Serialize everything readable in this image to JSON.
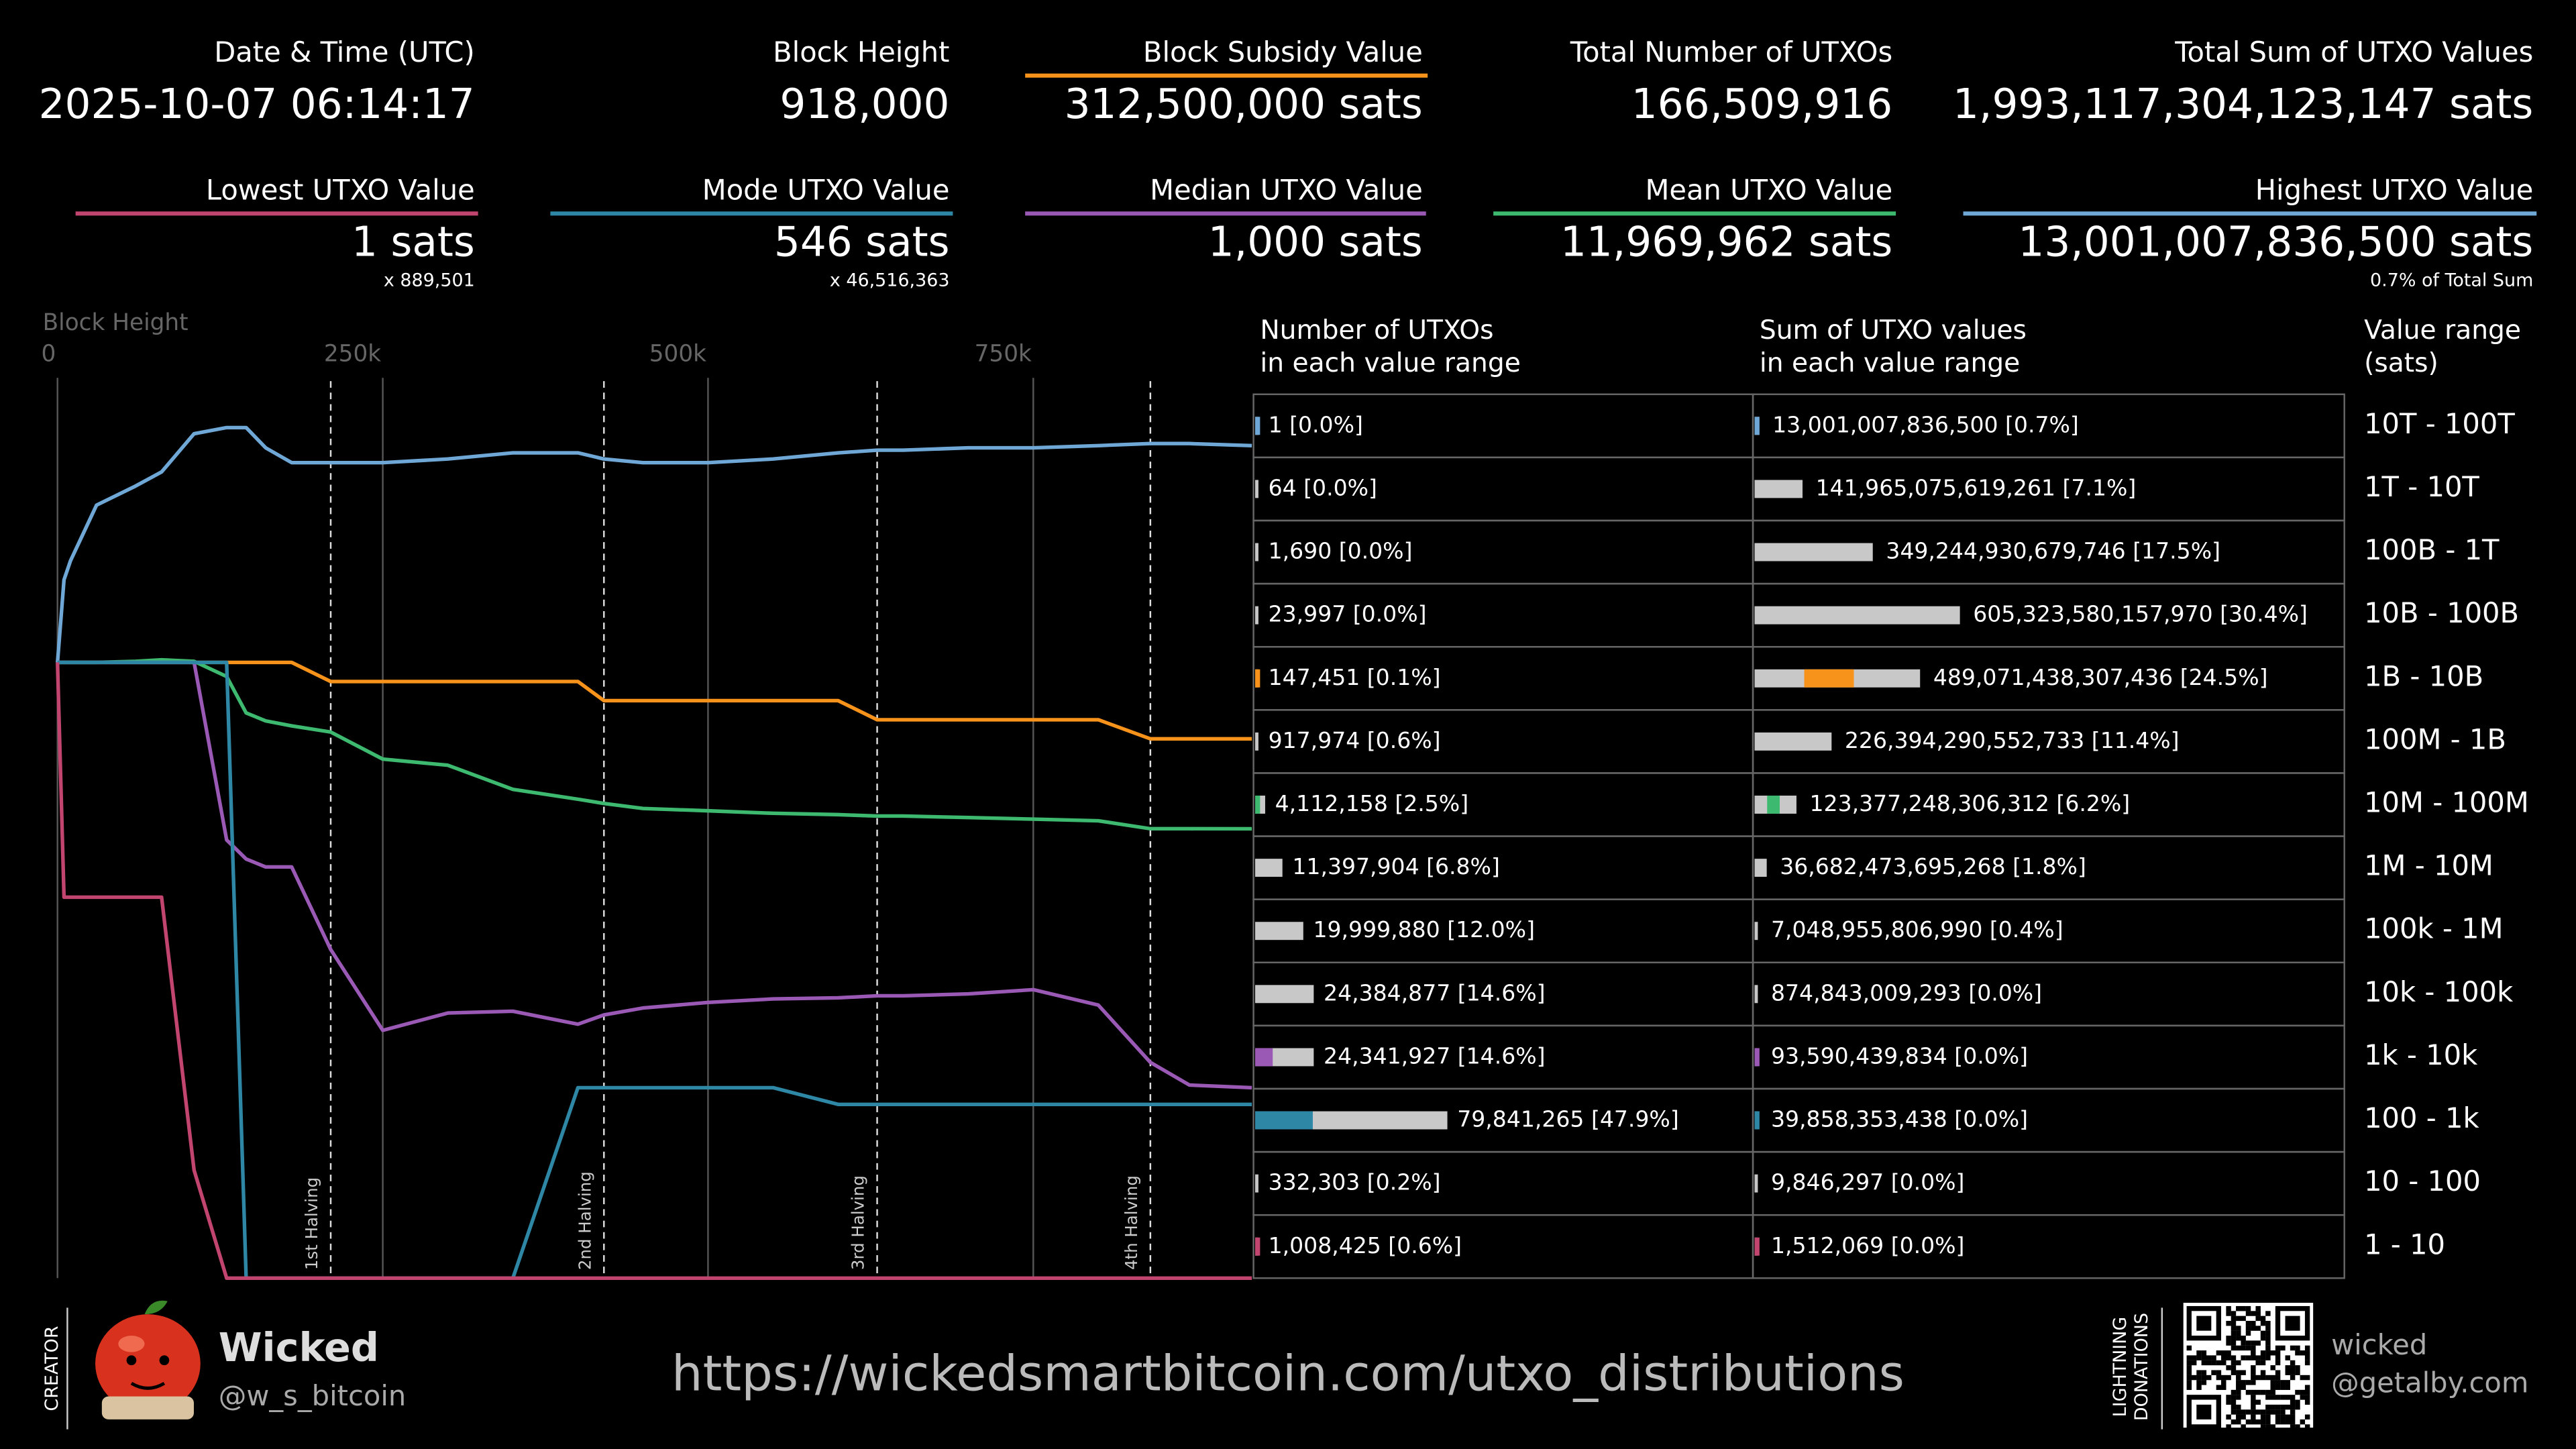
{
  "header": {
    "stats": [
      {
        "label": "Date & Time (UTC)",
        "value": "2025-10-07 06:14:17"
      },
      {
        "label": "Block Height",
        "value": "918,000"
      },
      {
        "label": "Block Subsidy Value",
        "value": "312,500,000 sats",
        "color": "#f7931a"
      },
      {
        "label": "Total Number of UTXOs",
        "value": "166,509,916"
      },
      {
        "label": "Total Sum of UTXO Values",
        "value": "1,993,117,304,123,147 sats"
      },
      {
        "label": "Lowest UTXO Value",
        "value": "1 sats",
        "note": "x 889,501",
        "color": "#c2456f"
      },
      {
        "label": "Mode UTXO Value",
        "value": "546 sats",
        "note": "x 46,516,363",
        "color": "#2f87a6"
      },
      {
        "label": "Median UTXO Value",
        "value": "1,000 sats",
        "color": "#9b59b6"
      },
      {
        "label": "Mean UTXO Value",
        "value": "11,969,962 sats",
        "color": "#3dba6f"
      },
      {
        "label": "Highest UTXO Value",
        "value": "13,001,007,836,500 sats",
        "note": "0.7% of Total Sum",
        "color": "#6fa8d6"
      }
    ]
  },
  "chart_data": {
    "type": "line",
    "xlabel": "Block Height",
    "x": [
      0,
      5000,
      10000,
      30000,
      60000,
      80000,
      105000,
      130000,
      145000,
      160000,
      180000,
      210000,
      250000,
      300000,
      350000,
      400000,
      420000,
      450000,
      500000,
      550000,
      600000,
      630000,
      650000,
      700000,
      750000,
      800000,
      840000,
      870000,
      918000
    ],
    "xlim": [
      0,
      918000
    ],
    "xticks": [
      0,
      {
        "value": 250000,
        "label": "250k"
      },
      {
        "value": 500000,
        "label": "500k"
      },
      {
        "value": 750000,
        "label": "750k"
      }
    ],
    "ylim": [
      1,
      100000000000000
    ],
    "log_scale": true,
    "grid": true,
    "series": [
      {
        "color": "#f7931a",
        "values": [
          5000000000,
          5000000000,
          5000000000,
          5000000000,
          5000000000,
          5000000000,
          5000000000,
          5000000000,
          5000000000,
          5000000000,
          5000000000,
          2500000000,
          2500000000,
          2500000000,
          2500000000,
          2500000000,
          1250000000,
          1250000000,
          1250000000,
          1250000000,
          1250000000,
          625000000,
          625000000,
          625000000,
          625000000,
          625000000,
          312500000,
          312500000,
          312500000
        ]
      },
      {
        "color": "#6fa8d6",
        "values": [
          5000000000,
          100000000000,
          200000000000,
          1500000000000,
          3000000000000,
          5000000000000,
          20000000000000,
          25000000000000,
          25000000000000,
          12000000000000,
          7000000000000,
          7000000000000,
          7000000000000,
          8000000000000,
          10000000000000,
          10000000000000,
          8000000000000,
          7000000000000,
          7000000000000,
          8000000000000,
          10000000000000,
          11000000000000,
          11000000000000,
          12000000000000,
          12000000000000,
          13000000000000,
          14000000000000,
          14000000000000,
          13001007836500
        ]
      },
      {
        "color": "#3dba6f",
        "values": [
          5000000000,
          5000000000,
          5000000000,
          5000000000,
          5200000000,
          5500000000,
          5200000000,
          3000000000,
          800000000,
          600000000,
          500000000,
          400000000,
          150000000,
          120000000,
          50000000,
          35000000,
          30000000,
          25000000,
          23000000,
          21000000,
          20000000,
          19000000,
          19000000,
          18000000,
          17000000,
          16000000,
          12000000,
          12000000,
          11969962
        ]
      },
      {
        "color": "#9b59b6",
        "values": [
          5000000000,
          5000000000,
          5000000000,
          5000000000,
          5000000000,
          5000000000,
          5000000000,
          8000000,
          4000000,
          3000000,
          3000000,
          150000,
          8000,
          15000,
          16000,
          10000,
          14000,
          18000,
          22000,
          25000,
          26000,
          28000,
          28000,
          30000,
          35000,
          20000,
          2500,
          1100,
          1000
        ]
      },
      {
        "color": "#2f87a6",
        "values": [
          5000000000,
          5000000000,
          5000000000,
          5000000000,
          5000000000,
          5000000000,
          5000000000,
          5000000000,
          1,
          1,
          1,
          1,
          1,
          1,
          1,
          1000,
          1000,
          1000,
          1000,
          1000,
          546,
          546,
          546,
          546,
          546,
          546,
          546,
          546,
          546
        ]
      },
      {
        "color": "#c2456f",
        "values": [
          5000000000,
          1000000,
          1000000,
          1000000,
          1000000,
          1000000,
          50,
          1,
          1,
          1,
          1,
          1,
          1,
          1,
          1,
          1,
          1,
          1,
          1,
          1,
          1,
          1,
          1,
          1,
          1,
          1,
          1,
          1,
          1
        ]
      }
    ],
    "annotations": [
      {
        "x": 210000,
        "label": "1st Halving"
      },
      {
        "x": 420000,
        "label": "2nd Halving"
      },
      {
        "x": 630000,
        "label": "3rd Halving"
      },
      {
        "x": 840000,
        "label": "4th Halving"
      }
    ]
  },
  "table": {
    "headers": [
      [
        "Number of UTXOs",
        "in each value range"
      ],
      [
        "Sum of UTXO values",
        "in each value range"
      ],
      [
        "Value range",
        "(sats)"
      ]
    ],
    "rows": [
      {
        "count_label": "1 [0.0%]",
        "count_pct": 0.0,
        "sum_label": "13,001,007,836,500 [0.7%]",
        "sum_pct": 0.7,
        "range": "10T - 100T",
        "marker": "#6fa8d6"
      },
      {
        "count_label": "64 [0.0%]",
        "count_pct": 0.0,
        "sum_label": "141,965,075,619,261 [7.1%]",
        "sum_pct": 7.1,
        "range": "1T - 10T"
      },
      {
        "count_label": "1,690 [0.0%]",
        "count_pct": 0.0,
        "sum_label": "349,244,930,679,746 [17.5%]",
        "sum_pct": 17.5,
        "range": "100B - 1T"
      },
      {
        "count_label": "23,997 [0.0%]",
        "count_pct": 0.0,
        "sum_label": "605,323,580,157,970 [30.4%]",
        "sum_pct": 30.4,
        "range": "10B - 100B"
      },
      {
        "count_label": "147,451 [0.1%]",
        "count_pct": 0.1,
        "sum_label": "489,071,438,307,436 [24.5%]",
        "sum_pct": 24.5,
        "range": "1B - 10B",
        "marker": "#f7931a"
      },
      {
        "count_label": "917,974 [0.6%]",
        "count_pct": 0.6,
        "sum_label": "226,394,290,552,733 [11.4%]",
        "sum_pct": 11.4,
        "range": "100M - 1B"
      },
      {
        "count_label": "4,112,158 [2.5%]",
        "count_pct": 2.5,
        "sum_label": "123,377,248,306,312 [6.2%]",
        "sum_pct": 6.2,
        "range": "10M - 100M",
        "marker": "#3dba6f"
      },
      {
        "count_label": "11,397,904 [6.8%]",
        "count_pct": 6.8,
        "sum_label": "36,682,473,695,268 [1.8%]",
        "sum_pct": 1.8,
        "range": "1M - 10M"
      },
      {
        "count_label": "19,999,880 [12.0%]",
        "count_pct": 12.0,
        "sum_label": "7,048,955,806,990 [0.4%]",
        "sum_pct": 0.4,
        "range": "100k - 1M"
      },
      {
        "count_label": "24,384,877 [14.6%]",
        "count_pct": 14.6,
        "sum_label": "874,843,009,293 [0.0%]",
        "sum_pct": 0.0,
        "range": "10k - 100k"
      },
      {
        "count_label": "24,341,927 [14.6%]",
        "count_pct": 14.6,
        "sum_label": "93,590,439,834 [0.0%]",
        "sum_pct": 0.0,
        "range": "1k - 10k",
        "marker": "#9b59b6"
      },
      {
        "count_label": "79,841,265 [47.9%]",
        "count_pct": 47.9,
        "sum_label": "39,858,353,438 [0.0%]",
        "sum_pct": 0.0,
        "range": "100 - 1k",
        "marker": "#2f87a6"
      },
      {
        "count_label": "332,303 [0.2%]",
        "count_pct": 0.2,
        "sum_label": "9,846,297 [0.0%]",
        "sum_pct": 0.0,
        "range": "10 - 100"
      },
      {
        "count_label": "1,008,425 [0.6%]",
        "count_pct": 0.6,
        "sum_label": "1,512,069 [0.0%]",
        "sum_pct": 0.0,
        "range": "1 - 10",
        "marker": "#c2456f"
      }
    ]
  },
  "footer": {
    "creator_label": "CREATOR",
    "name": "Wicked",
    "handle": "@w_s_bitcoin",
    "url": "https://wickedsmartbitcoin.com/utxo_distributions",
    "donation_label": [
      "LIGHTNING",
      "DONATIONS"
    ],
    "address": [
      "wicked",
      "@getalby.com"
    ]
  }
}
